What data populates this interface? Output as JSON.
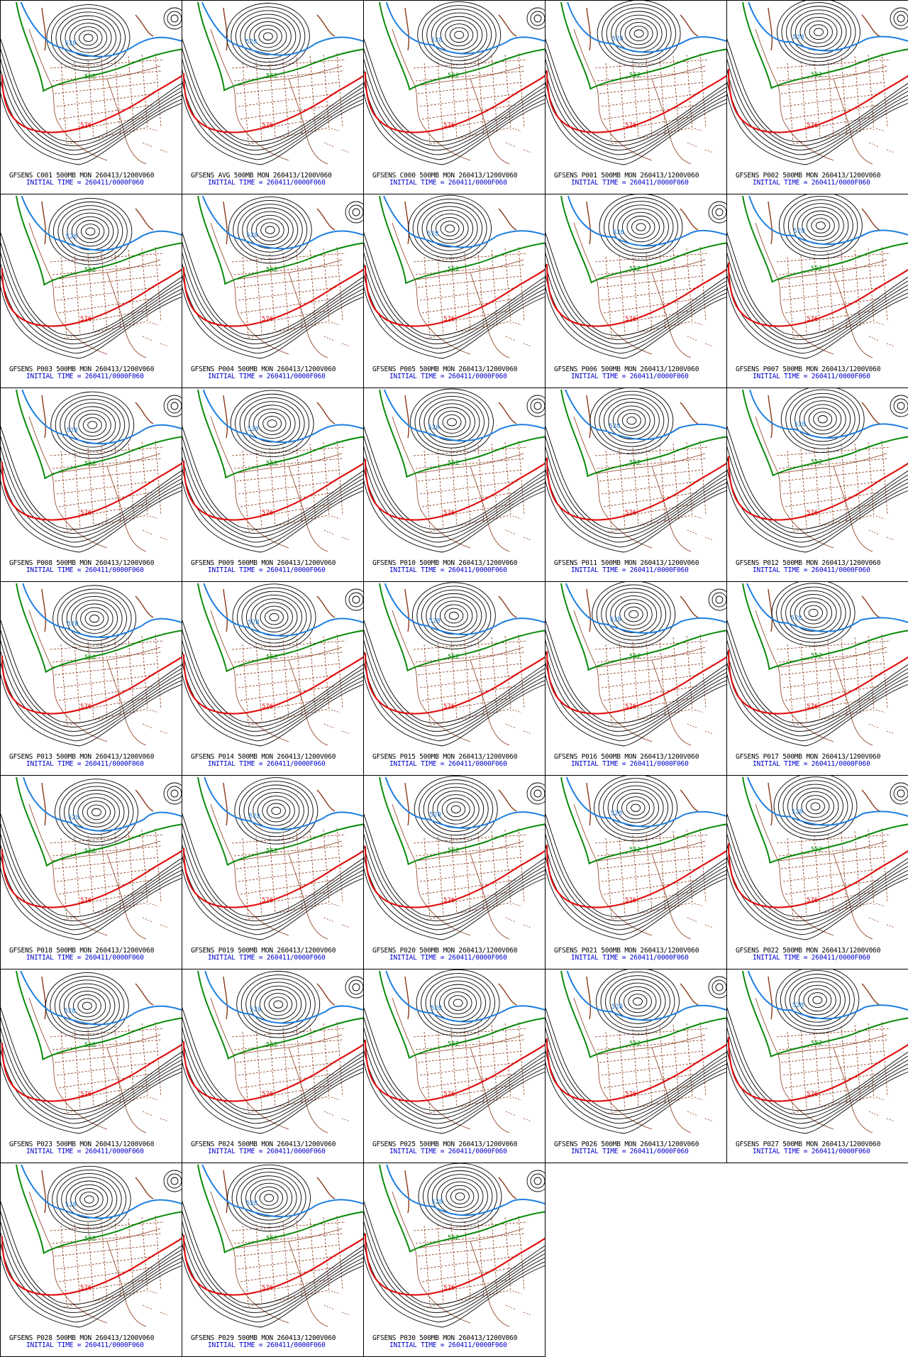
{
  "initial_time_label": "INITIAL TIME = 260411/0000F060",
  "contour_labels": {
    "blue": "528",
    "green": "552",
    "red": "576"
  },
  "colors": {
    "height": "#000000",
    "c528": "#1e7fe0",
    "c552": "#0a8a0a",
    "c576": "#e01010",
    "geography": "#8b3a1a",
    "caption_line2": "#0000cc"
  },
  "panels": [
    {
      "title": "GFSENS C001 500MB MON 260413/1200V060"
    },
    {
      "title": "GFSENS AVG 500MB MON 260413/1200V060"
    },
    {
      "title": "GFSENS C000 500MB MON 260413/1200V060"
    },
    {
      "title": "GFSENS P001 500MB MON 260413/1200V060"
    },
    {
      "title": "GFSENS P002 500MB MON 260413/1200V060"
    },
    {
      "title": "GFSENS P003 500MB MON 260413/1200V060"
    },
    {
      "title": "GFSENS P004 500MB MON 260413/1200V060"
    },
    {
      "title": "GFSENS P005 500MB MON 260413/1200V060"
    },
    {
      "title": "GFSENS P006 500MB MON 260413/1200V060"
    },
    {
      "title": "GFSENS P007 500MB MON 260413/1200V060"
    },
    {
      "title": "GFSENS P008 500MB MON 260413/1200V060"
    },
    {
      "title": "GFSENS P009 500MB MON 260413/1200V060"
    },
    {
      "title": "GFSENS P010 500MB MON 260413/1200V060"
    },
    {
      "title": "GFSENS P011 500MB MON 260413/1200V060"
    },
    {
      "title": "GFSENS P012 500MB MON 260413/1200V060"
    },
    {
      "title": "GFSENS P013 500MB MON 260413/1200V060"
    },
    {
      "title": "GFSENS P014 500MB MON 260413/1200V060"
    },
    {
      "title": "GFSENS P015 500MB MON 260413/1200V060"
    },
    {
      "title": "GFSENS P016 500MB MON 260413/1200V060"
    },
    {
      "title": "GFSENS P017 500MB MON 260413/1200V060"
    },
    {
      "title": "GFSENS P018 500MB MON 260413/1200V060"
    },
    {
      "title": "GFSENS P019 500MB MON 260413/1200V060"
    },
    {
      "title": "GFSENS P020 500MB MON 260413/1200V060"
    },
    {
      "title": "GFSENS P021 500MB MON 260413/1200V060"
    },
    {
      "title": "GFSENS P022 500MB MON 260413/1200V060"
    },
    {
      "title": "GFSENS P023 500MB MON 260413/1200V060"
    },
    {
      "title": "GFSENS P024 500MB MON 260413/1200V060"
    },
    {
      "title": "GFSENS P025 500MB MON 260413/1200V060"
    },
    {
      "title": "GFSENS P026 500MB MON 260413/1200V060"
    },
    {
      "title": "GFSENS P027 500MB MON 260413/1200V060"
    },
    {
      "title": "GFSENS P028 500MB MON 260413/1200V060"
    },
    {
      "title": "GFSENS P029 500MB MON 260413/1200V060"
    },
    {
      "title": "GFSENS P030 500MB MON 260413/1200V060"
    }
  ]
}
